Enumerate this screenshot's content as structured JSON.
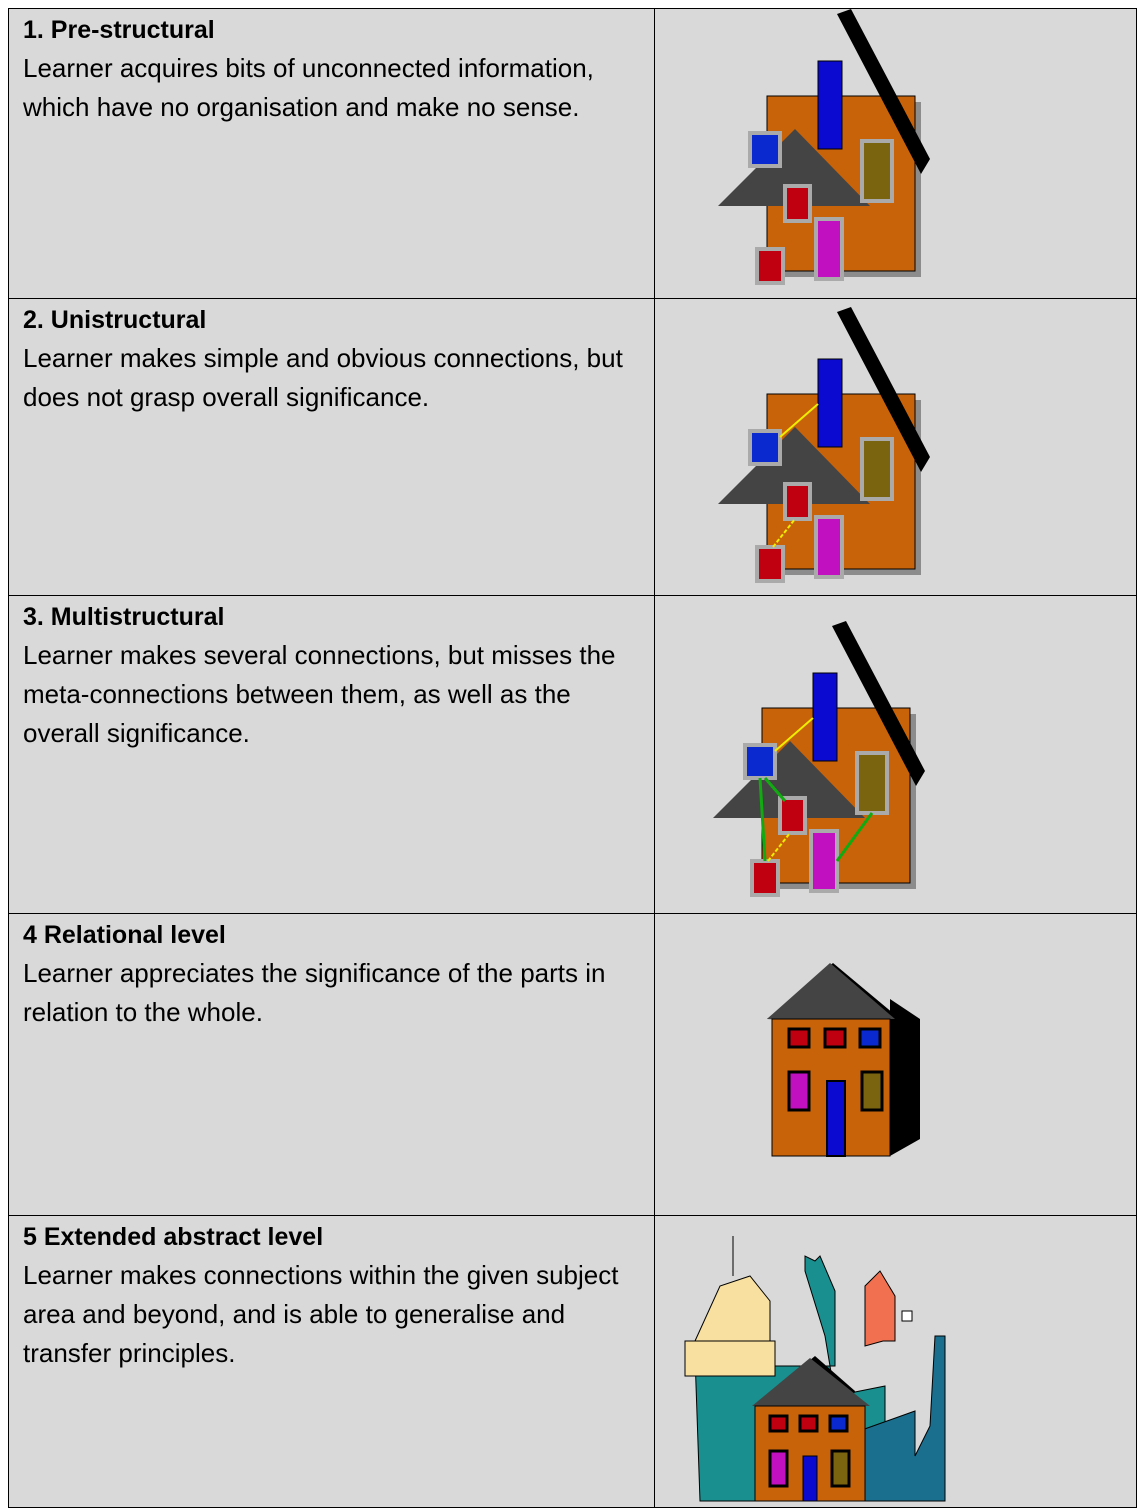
{
  "rows": [
    {
      "title": "1. Pre-structural",
      "description": "Learner acquires bits of unconnected information, which have no organisation and make no sense."
    },
    {
      "title": "2. Unistructural",
      "description": "Learner makes simple and obvious connections, but does not grasp overall significance."
    },
    {
      "title": "3. Multistructural",
      "description": "Learner makes several connections, but misses the meta-connections between them, as well as the overall significance."
    },
    {
      "title": "4 Relational level",
      "description": "Learner appreciates the significance of the parts in relation to the whole."
    },
    {
      "title": "5 Extended abstract level",
      "description": "Learner makes connections within the given subject area and beyond, and is able to generalise and transfer principles."
    }
  ]
}
